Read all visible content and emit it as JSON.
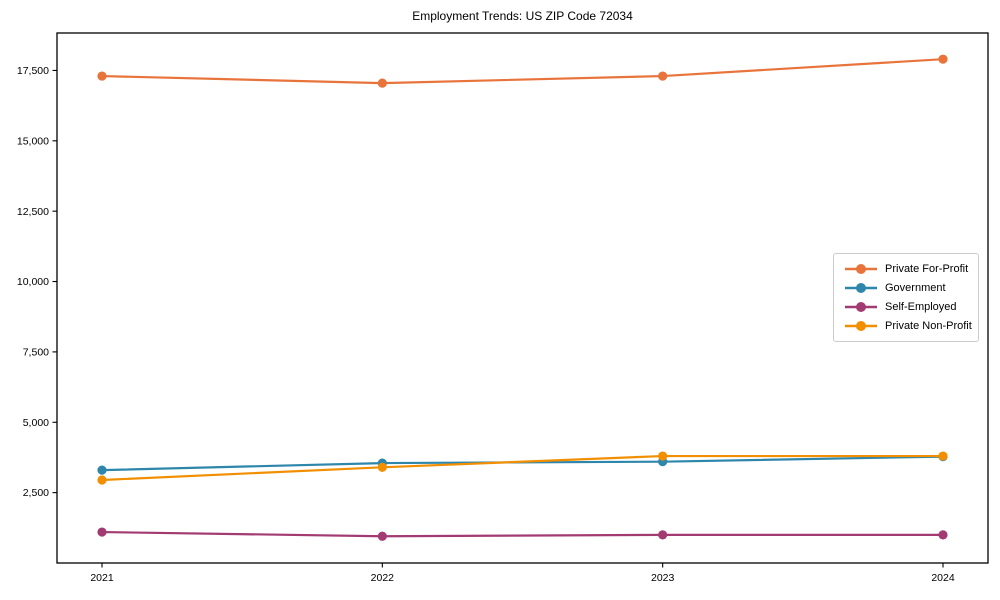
{
  "chart_data": {
    "type": "line",
    "title": "Employment Trends: US ZIP Code 72034",
    "xlabel": "",
    "ylabel": "",
    "categories": [
      "2021",
      "2022",
      "2023",
      "2024"
    ],
    "series": [
      {
        "name": "Private For-Profit",
        "color": "#E8743B",
        "values": [
          17300,
          17050,
          17300,
          17900
        ]
      },
      {
        "name": "Government",
        "color": "#2E86AB",
        "values": [
          3300,
          3550,
          3600,
          3780
        ]
      },
      {
        "name": "Self-Employed",
        "color": "#A23B72",
        "values": [
          1100,
          950,
          1000,
          1000
        ]
      },
      {
        "name": "Private Non-Profit",
        "color": "#F18F01",
        "values": [
          2950,
          3400,
          3800,
          3800
        ]
      }
    ],
    "ylim": [
      0,
      18830
    ],
    "ytick_values": [
      2500,
      5000,
      7500,
      10000,
      12500,
      15000,
      17500
    ],
    "ytick_labels": [
      "2,500",
      "5,000",
      "7,500",
      "10,000",
      "12,500",
      "15,000",
      "17,500"
    ],
    "grid": false,
    "legend_position": "right-inside",
    "axis_color": "#000000"
  }
}
